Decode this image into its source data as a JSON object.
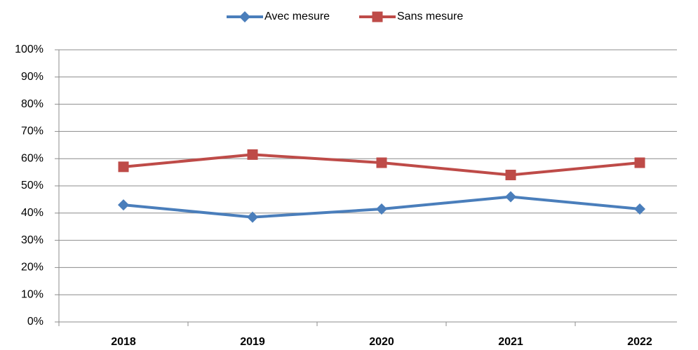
{
  "chart_data": {
    "type": "line",
    "categories": [
      "2018",
      "2019",
      "2020",
      "2021",
      "2022"
    ],
    "series": [
      {
        "name": "Avec mesure",
        "color": "#4a7ebb",
        "marker": "diamond",
        "values": [
          43,
          38.5,
          41.5,
          46,
          41.5
        ]
      },
      {
        "name": "Sans mesure",
        "color": "#be4b48",
        "marker": "square",
        "values": [
          57,
          61.5,
          58.5,
          54,
          58.5
        ]
      }
    ],
    "ylim": [
      0,
      100
    ],
    "yticks": [
      {
        "value": 0,
        "label": "0%"
      },
      {
        "value": 10,
        "label": "10%"
      },
      {
        "value": 20,
        "label": "20%"
      },
      {
        "value": 30,
        "label": "30%"
      },
      {
        "value": 40,
        "label": "40%"
      },
      {
        "value": 50,
        "label": "50%"
      },
      {
        "value": 60,
        "label": "60%"
      },
      {
        "value": 70,
        "label": "70%"
      },
      {
        "value": 80,
        "label": "80%"
      },
      {
        "value": 90,
        "label": "90%"
      },
      {
        "value": 100,
        "label": "100%"
      }
    ],
    "grid": true,
    "legend": "top"
  }
}
